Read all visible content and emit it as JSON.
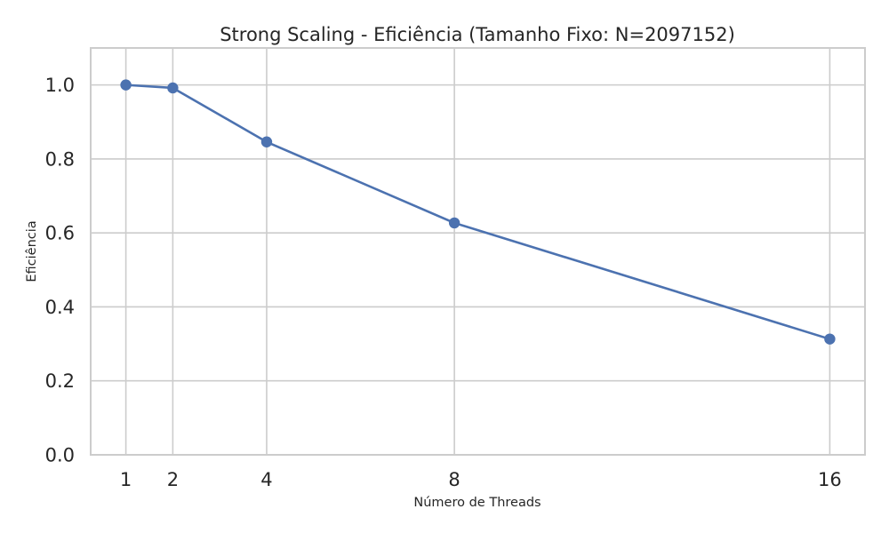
{
  "chart_data": {
    "type": "line",
    "title": "Strong Scaling - Eficiência (Tamanho Fixo: N=2097152)",
    "xlabel": "Número de Threads",
    "ylabel": "Eficiência",
    "x": [
      1,
      2,
      4,
      8,
      16
    ],
    "series": [
      {
        "values": [
          1.0,
          0.992,
          0.846,
          0.627,
          0.313
        ],
        "color": "#4c72b0",
        "marker": "circle"
      }
    ],
    "xticks": [
      1,
      2,
      4,
      8,
      16
    ],
    "xtick_labels": [
      "1",
      "2",
      "4",
      "8",
      "16"
    ],
    "yticks": [
      0.0,
      0.2,
      0.4,
      0.6,
      0.8,
      1.0
    ],
    "ytick_labels": [
      "0.0",
      "0.2",
      "0.4",
      "0.6",
      "0.8",
      "1.0"
    ],
    "xlim": [
      0.25,
      16.75
    ],
    "ylim": [
      0.0,
      1.1
    ],
    "grid": true,
    "legend": false,
    "colors": {
      "grid": "#cccccc",
      "text": "#262626",
      "series": "#4c72b0"
    }
  }
}
